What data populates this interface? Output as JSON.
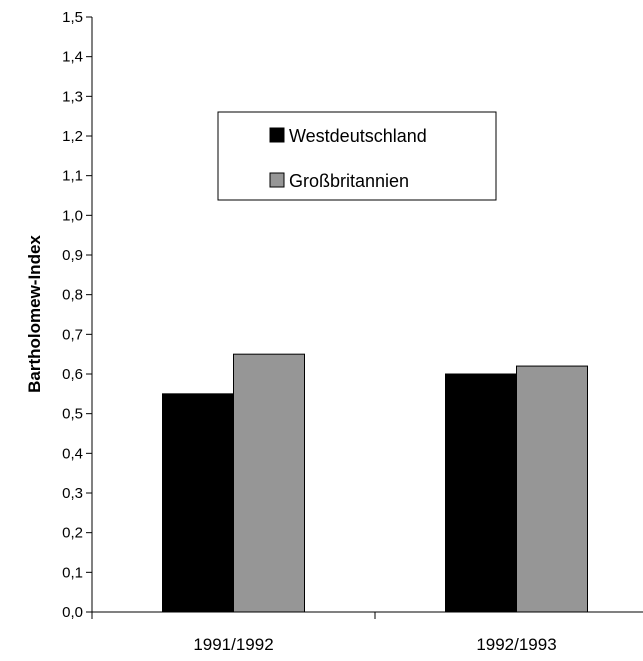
{
  "chart_data": {
    "type": "bar",
    "title": "",
    "xlabel": "",
    "ylabel": "Bartholomew-Index",
    "categories": [
      "1991/1992",
      "1992/1993"
    ],
    "series": [
      {
        "name": "Westdeutschland",
        "values": [
          0.55,
          0.6
        ],
        "color": "#000000"
      },
      {
        "name": "Großbritannien",
        "values": [
          0.65,
          0.62
        ],
        "color": "#969696"
      }
    ],
    "ylim": [
      0,
      1.5
    ],
    "yticks": [
      "0,0",
      "0,1",
      "0,2",
      "0,3",
      "0,4",
      "0,5",
      "0,6",
      "0,7",
      "0,8",
      "0,9",
      "1,0",
      "1,1",
      "1,2",
      "1,3",
      "1,4",
      "1,5"
    ],
    "grid": false,
    "legend_position": "top-center"
  }
}
